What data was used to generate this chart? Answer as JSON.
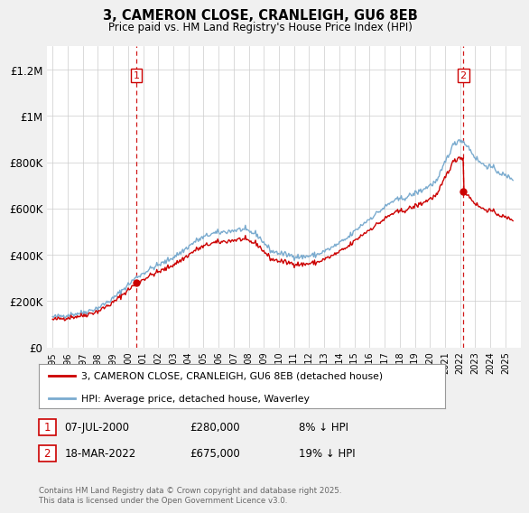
{
  "title": "3, CAMERON CLOSE, CRANLEIGH, GU6 8EB",
  "subtitle": "Price paid vs. HM Land Registry's House Price Index (HPI)",
  "legend_label_red": "3, CAMERON CLOSE, CRANLEIGH, GU6 8EB (detached house)",
  "legend_label_blue": "HPI: Average price, detached house, Waverley",
  "transaction1_date": "07-JUL-2000",
  "transaction1_price": "£280,000",
  "transaction1_note": "8% ↓ HPI",
  "transaction2_date": "18-MAR-2022",
  "transaction2_price": "£675,000",
  "transaction2_note": "19% ↓ HPI",
  "footer": "Contains HM Land Registry data © Crown copyright and database right 2025.\nThis data is licensed under the Open Government Licence v3.0.",
  "color_red": "#cc0000",
  "color_blue": "#7aabcf",
  "color_dashed": "#cc0000",
  "bg_color": "#f0f0f0",
  "plot_bg": "#ffffff",
  "ylim": [
    0,
    1300000
  ],
  "yticks": [
    0,
    200000,
    400000,
    600000,
    800000,
    1000000,
    1200000
  ],
  "ytick_labels": [
    "£0",
    "£200K",
    "£400K",
    "£600K",
    "£800K",
    "£1M",
    "£1.2M"
  ],
  "price1": 280000,
  "price2": 675000,
  "t1": 2000.54,
  "t2": 2022.21
}
